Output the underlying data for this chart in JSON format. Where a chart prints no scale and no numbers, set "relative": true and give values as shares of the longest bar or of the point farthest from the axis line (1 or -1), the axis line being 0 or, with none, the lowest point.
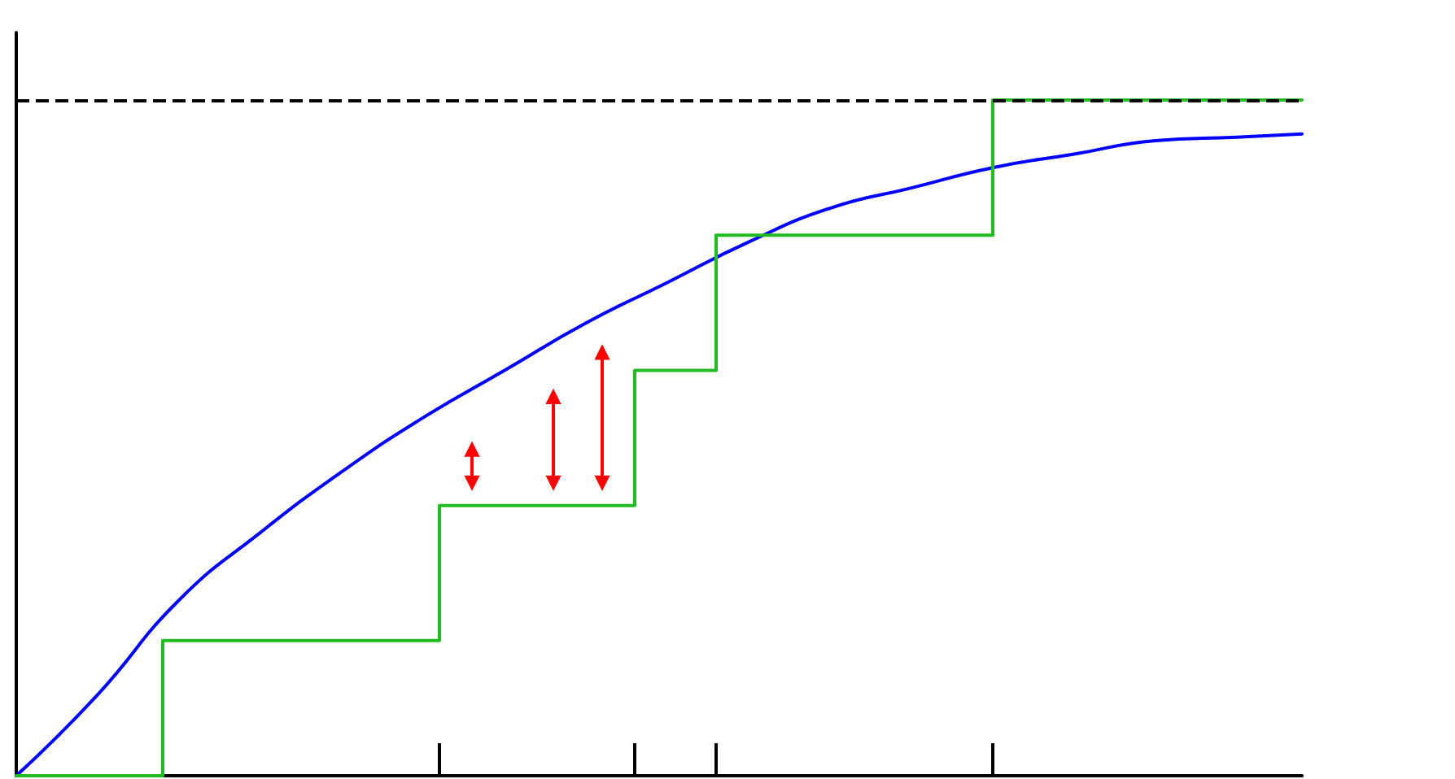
{
  "chart_data": {
    "type": "line",
    "relative": true,
    "tick_labels": false,
    "marker": "none",
    "categories": [
      null,
      null,
      null,
      null,
      null,
      null,
      null,
      null,
      null,
      null,
      null,
      null,
      null,
      null,
      null,
      null,
      null,
      null,
      null,
      null,
      null,
      null,
      null,
      null,
      null,
      null,
      null,
      null,
      null,
      null,
      null,
      null,
      null,
      null,
      null,
      null,
      null,
      null,
      null,
      null,
      null,
      null,
      null,
      null,
      null,
      null,
      null,
      null,
      null,
      null,
      null,
      null,
      null,
      null,
      null,
      null,
      null,
      null,
      null,
      null,
      null,
      null,
      null,
      null,
      null,
      null,
      null,
      null,
      null,
      null,
      null,
      null,
      null,
      null,
      null,
      null,
      null,
      null,
      null,
      null
    ],
    "series": [
      {
        "color": "#0000ff",
        "line_style": "solid",
        "values": [
          0,
          null,
          null,
          null,
          null,
          0.12,
          null,
          null,
          null,
          null,
          0.26,
          null,
          null,
          null,
          null,
          0.36,
          null,
          null,
          null,
          null,
          0.45,
          null,
          null,
          null,
          null,
          0.53,
          null,
          null,
          null,
          null,
          0.6,
          null,
          null,
          null,
          null,
          0.67,
          null,
          null,
          null,
          null,
          0.73,
          null,
          null,
          null,
          null,
          0.79,
          null,
          null,
          null,
          null,
          0.84,
          null,
          null,
          null,
          null,
          0.87,
          null,
          null,
          null,
          null,
          0.9,
          null,
          null,
          null,
          null,
          0.92,
          null,
          null,
          null,
          null,
          0.94,
          null,
          null,
          null,
          null,
          0.945,
          null,
          null,
          null,
          0.95
        ]
      },
      {
        "type": "step",
        "color": "#22bb22",
        "line_style": "solid",
        "values": [
          0,
          0,
          0,
          0,
          0,
          0,
          0,
          0,
          0,
          0.2,
          0.2,
          0.2,
          0.2,
          0.2,
          0.2,
          0.2,
          0.2,
          0.2,
          0.2,
          0.2,
          0.2,
          0.2,
          0.2,
          0.2,
          0.2,
          0.2,
          0.4,
          0.4,
          0.4,
          0.4,
          0.4,
          0.4,
          0.4,
          0.4,
          0.4,
          0.4,
          0.4,
          0.4,
          0.6,
          0.6,
          0.6,
          0.6,
          0.6,
          0.8,
          0.8,
          0.8,
          0.8,
          0.8,
          0.8,
          0.8,
          0.8,
          0.8,
          0.8,
          0.8,
          0.8,
          0.8,
          0.8,
          0.8,
          0.8,
          0.8,
          1,
          1,
          1,
          1,
          1,
          1,
          1,
          1,
          1,
          1,
          1,
          1,
          1,
          1,
          1,
          1,
          1,
          1,
          1,
          1
        ]
      }
    ],
    "ref_lines": [
      {
        "axis": "y",
        "value": 1,
        "color": "#000000",
        "line_style": "dashed"
      }
    ]
  }
}
